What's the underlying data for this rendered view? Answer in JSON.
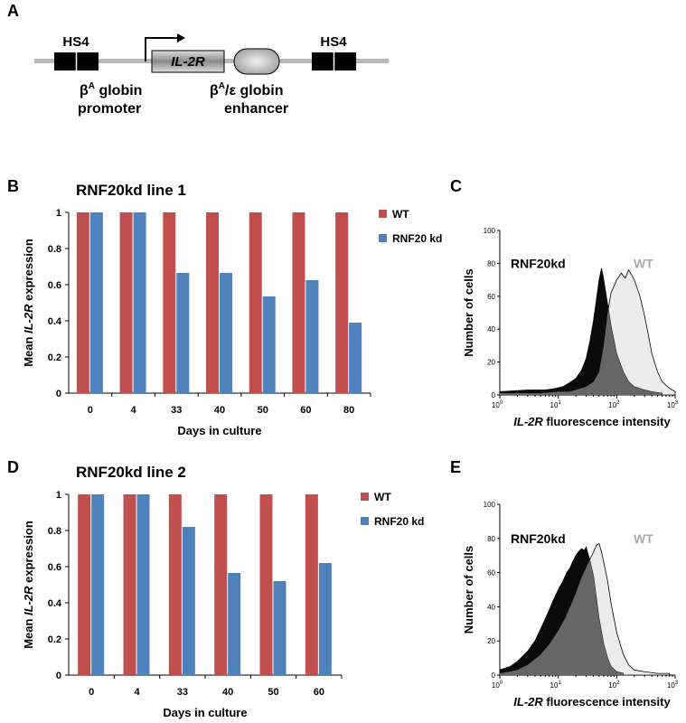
{
  "panels": {
    "a": "A",
    "b": "B",
    "c": "C",
    "d": "D",
    "e": "E"
  },
  "construct": {
    "hs4_left": "HS4",
    "hs4_right": "HS4",
    "gene": "IL-2R",
    "promoter_line1": "β",
    "promoter_sup": "A",
    "promoter_line1_rest": " globin",
    "promoter_line2": "promoter",
    "enhancer_line1": "β",
    "enhancer_sup": "A",
    "enhancer_line1_rest": "/ε globin",
    "enhancer_line2": "enhancer"
  },
  "chart_data": [
    {
      "type": "bar",
      "title": "RNF20kd line 1",
      "categories": [
        "0",
        "4",
        "33",
        "40",
        "50",
        "60",
        "80"
      ],
      "series": [
        {
          "name": "WT",
          "color": "#c0504d",
          "values": [
            1,
            1,
            1,
            1,
            1,
            1,
            1
          ]
        },
        {
          "name": "RNF20 kd",
          "color": "#4f81bd",
          "values": [
            1,
            1,
            0.665,
            0.665,
            0.535,
            0.625,
            0.39
          ]
        }
      ],
      "ylim": [
        0,
        1
      ],
      "yticks": [
        "0",
        "0.2",
        "0.4",
        "0.6",
        "0.8",
        "1"
      ],
      "xlabel": "Days in culture",
      "ylabel_prefix": "Mean ",
      "ylabel_italic": "IL-2R",
      "ylabel_suffix": " expression",
      "legend": "right",
      "grid": false
    },
    {
      "type": "bar",
      "title": "RNF20kd line 2",
      "categories": [
        "0",
        "4",
        "33",
        "40",
        "50",
        "60"
      ],
      "series": [
        {
          "name": "WT",
          "color": "#c0504d",
          "values": [
            1,
            1,
            1,
            1,
            1,
            1
          ]
        },
        {
          "name": "RNF20 kd",
          "color": "#4f81bd",
          "values": [
            1,
            1,
            0.82,
            0.565,
            0.52,
            0.62
          ]
        }
      ],
      "ylim": [
        0,
        1
      ],
      "yticks": [
        "0",
        "0.2",
        "0.4",
        "0.6",
        "0.8",
        "1"
      ],
      "xlabel": "Days in culture",
      "ylabel_prefix": "Mean ",
      "ylabel_italic": "IL-2R",
      "ylabel_suffix": " expression",
      "legend": "right",
      "grid": false
    },
    {
      "type": "area",
      "scale": "log-x",
      "xlim": [
        1,
        1000
      ],
      "ylim": [
        0,
        100
      ],
      "yticks": [
        "0",
        "20",
        "40",
        "60",
        "80",
        "100"
      ],
      "xticks": [
        "10",
        "10",
        "10",
        "10"
      ],
      "xtick_exps": [
        "0",
        "1",
        "2",
        "3"
      ],
      "ylabel": "Number of cells",
      "xlabel_italic": "IL-2R",
      "xlabel_rest": " fluorescence intensity",
      "series": [
        {
          "name": "RNF20kd",
          "color": "#000000",
          "x": [
            1,
            3,
            6,
            9,
            12,
            15,
            20,
            25,
            30,
            35,
            40,
            45,
            50,
            55,
            60,
            70,
            80,
            100,
            130,
            160,
            200,
            300,
            400,
            600
          ],
          "y": [
            2,
            3,
            3,
            4,
            5,
            7,
            10,
            15,
            22,
            33,
            45,
            58,
            70,
            77,
            70,
            55,
            42,
            25,
            14,
            8,
            5,
            3,
            2,
            1
          ]
        },
        {
          "name": "WT",
          "color": "#bbbbbb",
          "x": [
            1,
            5,
            10,
            15,
            20,
            30,
            40,
            50,
            60,
            70,
            80,
            100,
            120,
            140,
            160,
            180,
            200,
            250,
            300,
            350,
            400,
            500,
            600,
            800,
            1000
          ],
          "y": [
            1,
            1,
            2,
            2,
            3,
            5,
            8,
            14,
            30,
            50,
            62,
            70,
            74,
            71,
            76,
            73,
            70,
            60,
            48,
            36,
            25,
            14,
            8,
            4,
            2
          ]
        }
      ]
    },
    {
      "type": "area",
      "scale": "log-x",
      "xlim": [
        1,
        1000
      ],
      "ylim": [
        0,
        100
      ],
      "yticks": [
        "0",
        "20",
        "40",
        "60",
        "80",
        "100"
      ],
      "xticks": [
        "10",
        "10",
        "10",
        "10"
      ],
      "xtick_exps": [
        "0",
        "1",
        "2",
        "3"
      ],
      "ylabel": "Number of cells",
      "xlabel_italic": "IL-2R",
      "xlabel_rest": " fluorescence intensity",
      "series": [
        {
          "name": "RNF20kd",
          "color": "#000000",
          "x": [
            1,
            1.5,
            2,
            3,
            4,
            5,
            6,
            7,
            8,
            10,
            12,
            14,
            16,
            18,
            20,
            22,
            25,
            28,
            30,
            33,
            36,
            40,
            45,
            50,
            60,
            70,
            80,
            100,
            130
          ],
          "y": [
            3,
            5,
            8,
            14,
            20,
            27,
            33,
            38,
            43,
            50,
            55,
            60,
            63,
            67,
            70,
            72,
            74,
            73,
            75,
            70,
            65,
            58,
            45,
            33,
            18,
            10,
            5,
            2,
            1
          ]
        },
        {
          "name": "WT",
          "color": "#bbbbbb",
          "x": [
            1,
            2,
            3,
            5,
            7,
            10,
            13,
            16,
            20,
            25,
            30,
            35,
            40,
            45,
            50,
            55,
            60,
            70,
            80,
            100,
            130,
            160,
            200,
            300,
            500,
            800
          ],
          "y": [
            1,
            3,
            6,
            12,
            18,
            26,
            33,
            40,
            48,
            57,
            63,
            68,
            72,
            76,
            77,
            72,
            66,
            55,
            42,
            25,
            12,
            6,
            3,
            2,
            1,
            1
          ]
        }
      ]
    }
  ]
}
